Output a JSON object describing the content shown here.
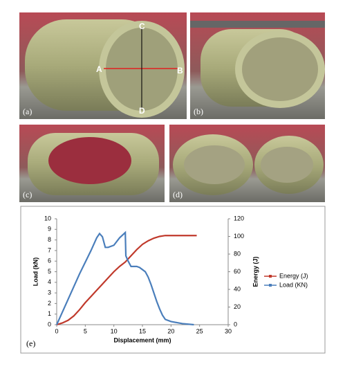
{
  "figure": {
    "panel_labels": [
      "(a)",
      "(b)",
      "(c)",
      "(d)",
      "(e)"
    ],
    "point_labels": [
      "A",
      "B",
      "C",
      "D"
    ]
  },
  "chart_data": {
    "type": "line",
    "xlabel": "Displacement (mm)",
    "ylabel": "Load (kN)",
    "y2label": "Energy (J)",
    "xlim": [
      0,
      30
    ],
    "xticks": [
      0,
      5,
      10,
      15,
      20,
      25,
      30
    ],
    "ylim": [
      0,
      10
    ],
    "yticks": [
      0,
      1,
      2,
      3,
      4,
      5,
      6,
      7,
      8,
      9,
      10
    ],
    "y2lim": [
      0,
      120
    ],
    "y2ticks": [
      0,
      20,
      40,
      60,
      80,
      100,
      120
    ],
    "legend": "right",
    "series": [
      {
        "name": "Energy (J)",
        "color": "#c0392b",
        "axis": "y2",
        "x": [
          0,
          1,
          2,
          3,
          4,
          5,
          6,
          7,
          8,
          9,
          10,
          11,
          12,
          13,
          14,
          15,
          16,
          17,
          18,
          19,
          20,
          22,
          24.5
        ],
        "values": [
          0,
          2,
          5,
          10,
          17,
          25,
          32,
          39,
          46,
          53,
          60,
          66,
          71,
          78,
          85,
          91,
          95,
          98,
          100,
          101,
          101,
          101,
          101
        ]
      },
      {
        "name": "Load (KN)",
        "color": "#4a7ebb",
        "x": [
          0,
          1,
          2,
          3,
          4,
          5,
          6,
          7,
          7.5,
          8,
          8.5,
          9,
          10,
          11,
          12,
          12.1,
          12.5,
          13,
          14,
          14.5,
          15,
          15.5,
          16,
          16.5,
          17,
          17.5,
          18,
          18.5,
          19,
          20,
          21,
          22,
          24
        ],
        "values": [
          0,
          1.2,
          2.4,
          3.6,
          4.8,
          5.9,
          7.0,
          8.2,
          8.6,
          8.3,
          7.3,
          7.3,
          7.5,
          8.2,
          8.7,
          6.5,
          6.0,
          5.5,
          5.5,
          5.4,
          5.2,
          5.0,
          4.5,
          3.8,
          3.0,
          2.2,
          1.5,
          0.9,
          0.5,
          0.3,
          0.2,
          0.1,
          0
        ]
      }
    ]
  }
}
